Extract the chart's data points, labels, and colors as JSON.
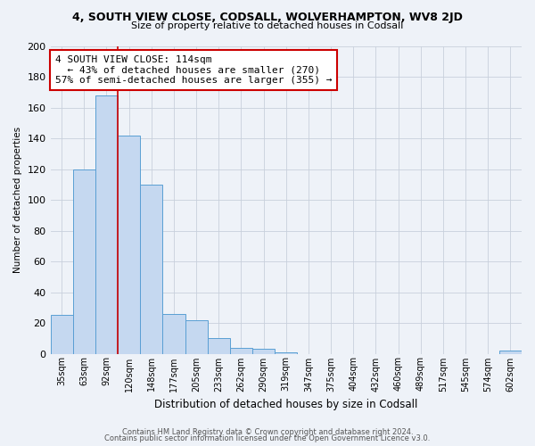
{
  "title": "4, SOUTH VIEW CLOSE, CODSALL, WOLVERHAMPTON, WV8 2JD",
  "subtitle": "Size of property relative to detached houses in Codsall",
  "xlabel": "Distribution of detached houses by size in Codsall",
  "ylabel": "Number of detached properties",
  "bar_labels": [
    "35sqm",
    "63sqm",
    "92sqm",
    "120sqm",
    "148sqm",
    "177sqm",
    "205sqm",
    "233sqm",
    "262sqm",
    "290sqm",
    "319sqm",
    "347sqm",
    "375sqm",
    "404sqm",
    "432sqm",
    "460sqm",
    "489sqm",
    "517sqm",
    "545sqm",
    "574sqm",
    "602sqm"
  ],
  "bar_values": [
    25,
    120,
    168,
    142,
    110,
    26,
    22,
    10,
    4,
    3,
    1,
    0,
    0,
    0,
    0,
    0,
    0,
    0,
    0,
    0,
    2
  ],
  "bar_color": "#c5d8f0",
  "bar_edge_color": "#5a9fd4",
  "grid_color": "#c8d0dc",
  "property_line_color": "#cc0000",
  "annotation_title": "4 SOUTH VIEW CLOSE: 114sqm",
  "annotation_line1": "← 43% of detached houses are smaller (270)",
  "annotation_line2": "57% of semi-detached houses are larger (355) →",
  "annotation_box_color": "#ffffff",
  "annotation_box_edge": "#cc0000",
  "ylim": [
    0,
    200
  ],
  "yticks": [
    0,
    20,
    40,
    60,
    80,
    100,
    120,
    140,
    160,
    180,
    200
  ],
  "footer_line1": "Contains HM Land Registry data © Crown copyright and database right 2024.",
  "footer_line2": "Contains public sector information licensed under the Open Government Licence v3.0.",
  "background_color": "#eef2f8"
}
